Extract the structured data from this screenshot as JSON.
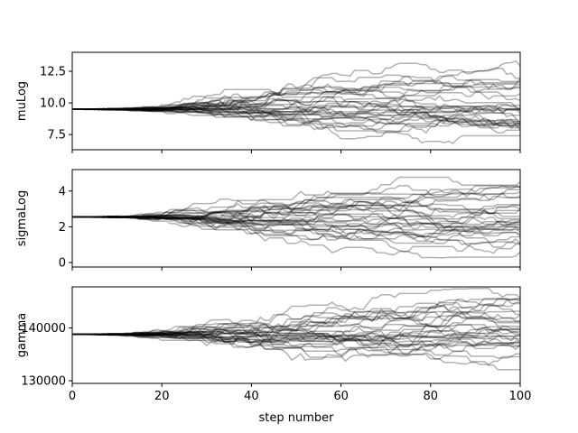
{
  "chart_data": {
    "type": "line",
    "description_style": "MCMC walker traces",
    "num_walkers": 32,
    "xlabel": "step number",
    "xlim": [
      0,
      100
    ],
    "xticks": [
      0,
      20,
      40,
      60,
      80,
      100
    ],
    "xtick_labels": [
      "0",
      "20",
      "40",
      "60",
      "80",
      "100"
    ],
    "line_color": "#000000",
    "line_opacity": 0.3,
    "grid": false,
    "legend": "none",
    "panels": [
      {
        "ylabel": "muLog",
        "ylim": [
          6.3,
          14.0
        ],
        "yticks": [
          7.5,
          10.0,
          12.5
        ],
        "ytick_labels": [
          "7.5",
          "10.0",
          "12.5"
        ],
        "initial_value": 9.5,
        "final_range": [
          6.8,
          13.5
        ]
      },
      {
        "ylabel": "sigmaLog",
        "ylim": [
          -0.25,
          5.2
        ],
        "yticks": [
          0,
          2,
          4
        ],
        "ytick_labels": [
          "0",
          "2",
          "4"
        ],
        "initial_value": 2.55,
        "final_range": [
          0.25,
          4.9
        ]
      },
      {
        "ylabel": "gamma",
        "ylim": [
          129500,
          147800
        ],
        "yticks": [
          130000,
          140000
        ],
        "ytick_labels": [
          "130000",
          "140000"
        ],
        "initial_value": 138800,
        "final_range": [
          130200,
          147500
        ]
      }
    ]
  }
}
